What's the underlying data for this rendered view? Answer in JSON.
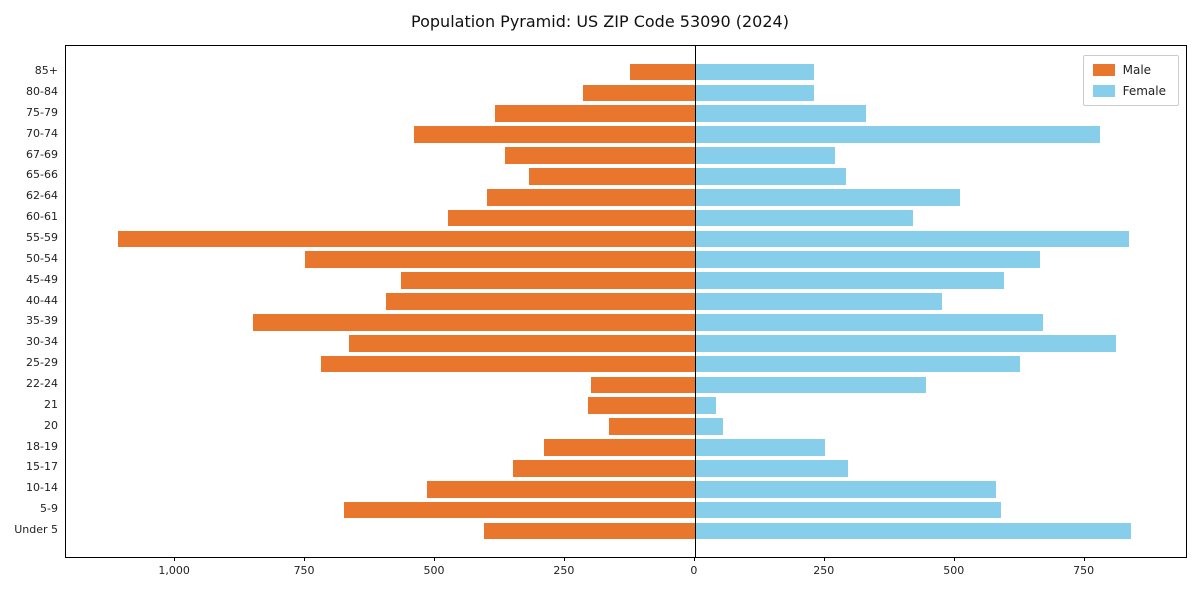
{
  "chart_data": {
    "type": "bar",
    "orientation": "horizontal-pyramid",
    "title": "Population Pyramid: US ZIP Code 53090 (2024)",
    "categories": [
      "85+",
      "80-84",
      "75-79",
      "70-74",
      "67-69",
      "65-66",
      "62-64",
      "60-61",
      "55-59",
      "50-54",
      "45-49",
      "40-44",
      "35-39",
      "30-34",
      "25-29",
      "22-24",
      "21",
      "20",
      "18-19",
      "15-17",
      "10-14",
      "5-9",
      "Under 5"
    ],
    "series": [
      {
        "name": "Male",
        "color": "#e8762c",
        "values": [
          125,
          215,
          385,
          540,
          365,
          320,
          400,
          475,
          1110,
          750,
          565,
          595,
          850,
          665,
          720,
          200,
          205,
          165,
          290,
          350,
          515,
          675,
          405
        ]
      },
      {
        "name": "Female",
        "color": "#87ceeb",
        "values": [
          230,
          230,
          330,
          780,
          270,
          290,
          510,
          420,
          835,
          665,
          595,
          475,
          670,
          810,
          625,
          445,
          40,
          55,
          250,
          295,
          580,
          590,
          840
        ]
      }
    ],
    "x_ticks": [
      {
        "v": -1000,
        "label": "1,000"
      },
      {
        "v": -750,
        "label": "750"
      },
      {
        "v": -500,
        "label": "500"
      },
      {
        "v": -250,
        "label": "250"
      },
      {
        "v": 0,
        "label": "0"
      },
      {
        "v": 250,
        "label": "250"
      },
      {
        "v": 500,
        "label": "500"
      },
      {
        "v": 750,
        "label": "750"
      }
    ],
    "xlim": {
      "male_max": 1210,
      "female_max": 945
    },
    "legend": {
      "position": "upper-right"
    },
    "grid": false
  }
}
